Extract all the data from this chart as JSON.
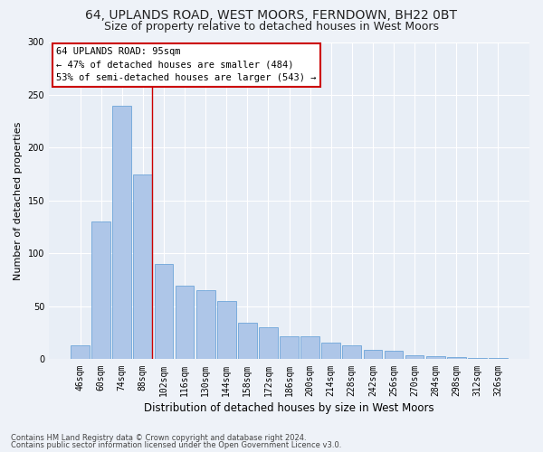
{
  "title": "64, UPLANDS ROAD, WEST MOORS, FERNDOWN, BH22 0BT",
  "subtitle": "Size of property relative to detached houses in West Moors",
  "xlabel": "Distribution of detached houses by size in West Moors",
  "ylabel": "Number of detached properties",
  "categories": [
    "46sqm",
    "60sqm",
    "74sqm",
    "88sqm",
    "102sqm",
    "116sqm",
    "130sqm",
    "144sqm",
    "158sqm",
    "172sqm",
    "186sqm",
    "200sqm",
    "214sqm",
    "228sqm",
    "242sqm",
    "256sqm",
    "270sqm",
    "284sqm",
    "298sqm",
    "312sqm",
    "326sqm"
  ],
  "values": [
    13,
    130,
    240,
    175,
    90,
    70,
    65,
    55,
    35,
    30,
    22,
    22,
    16,
    13,
    9,
    8,
    4,
    3,
    2,
    1,
    1
  ],
  "bar_color": "#aec6e8",
  "bar_edge_color": "#5b9bd5",
  "annotation_text_line1": "64 UPLANDS ROAD: 95sqm",
  "annotation_text_line2": "← 47% of detached houses are smaller (484)",
  "annotation_text_line3": "53% of semi-detached houses are larger (543) →",
  "annotation_box_color": "#ffffff",
  "annotation_box_edge_color": "#cc0000",
  "footer_line1": "Contains HM Land Registry data © Crown copyright and database right 2024.",
  "footer_line2": "Contains public sector information licensed under the Open Government Licence v3.0.",
  "ylim": [
    0,
    300
  ],
  "yticks": [
    0,
    50,
    100,
    150,
    200,
    250,
    300
  ],
  "bg_color": "#eef2f8",
  "plot_bg_color": "#e8eef6",
  "grid_color": "#ffffff",
  "title_fontsize": 10,
  "subtitle_fontsize": 9,
  "tick_fontsize": 7,
  "ylabel_fontsize": 8,
  "xlabel_fontsize": 8.5,
  "annotation_fontsize": 7.5,
  "footer_fontsize": 6
}
